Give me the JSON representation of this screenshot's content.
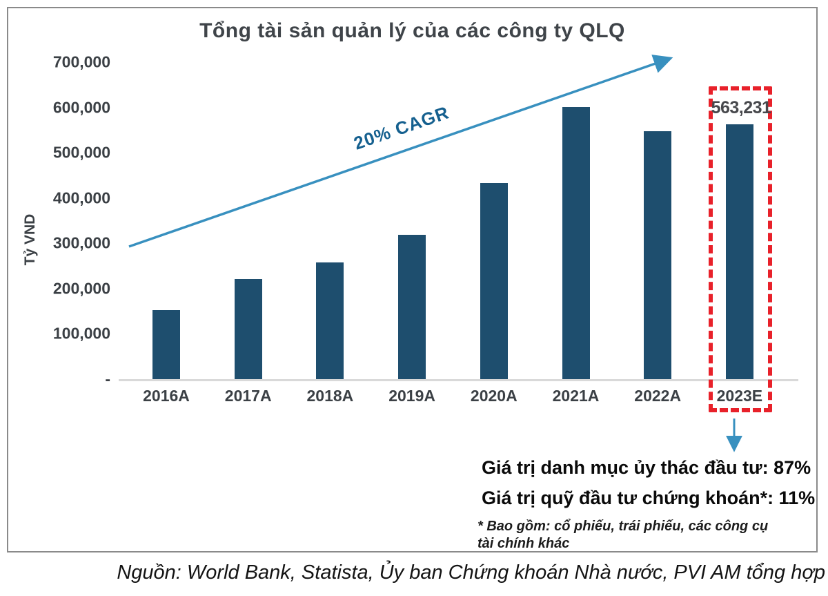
{
  "chart_data": {
    "type": "bar",
    "title": "Tổng tài sản quản lý của các công ty QLQ",
    "ylabel": "Tỷ VND",
    "xlabel": "",
    "categories": [
      "2016A",
      "2017A",
      "2018A",
      "2019A",
      "2020A",
      "2021A",
      "2022A",
      "2023E"
    ],
    "values": [
      152000,
      221000,
      257000,
      318000,
      433000,
      601000,
      547000,
      563231
    ],
    "ylim": [
      0,
      700000
    ],
    "yticks": [
      {
        "label": "700,000",
        "value": 700000
      },
      {
        "label": "600,000",
        "value": 600000
      },
      {
        "label": "500,000",
        "value": 500000
      },
      {
        "label": "400,000",
        "value": 400000
      },
      {
        "label": "300,000",
        "value": 300000
      },
      {
        "label": "200,000",
        "value": 200000
      },
      {
        "label": "100,000",
        "value": 100000
      },
      {
        "label": "-",
        "value": 0
      }
    ],
    "grid": false,
    "legend": "none",
    "bar_color": "#1e4e6e",
    "arrow_color": "#3890bf",
    "cagr_label": "20% CAGR",
    "cagr_color": "#15608f",
    "highlight_category": "2023E",
    "highlight_color": "#e8212a",
    "bar_label": {
      "category": "2023E",
      "text": "563,231"
    }
  },
  "annotations": {
    "trust_portfolio": "Giá trị danh mục ủy thác đầu tư: 87%",
    "securities_funds": "Giá trị quỹ đầu tư chứng khoán*: 11%",
    "footnote": "* Bao gồm: cổ phiếu, trái phiếu, các công cụ tài chính khác"
  },
  "source": "Nguồn: World Bank, Statista, Ủy ban Chứng khoán Nhà nước, PVI AM tổng hợp"
}
